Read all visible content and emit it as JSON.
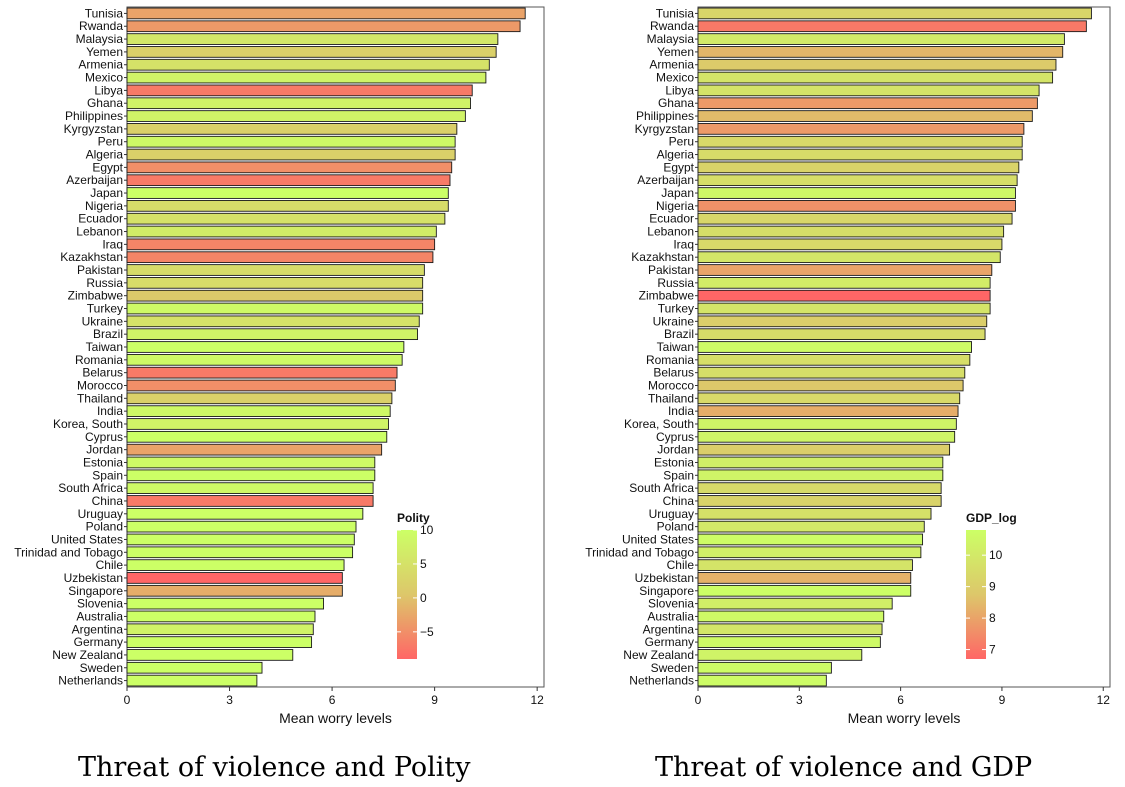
{
  "chart_data": [
    {
      "type": "bar",
      "orientation": "horizontal",
      "caption": "Threat of violence and Polity",
      "xlabel": "Mean worry levels",
      "xlim": [
        0,
        12.2
      ],
      "xticks": [
        0,
        3,
        6,
        9,
        12
      ],
      "categories": [
        "Tunisia",
        "Rwanda",
        "Malaysia",
        "Yemen",
        "Armenia",
        "Mexico",
        "Libya",
        "Ghana",
        "Philippines",
        "Kyrgyzstan",
        "Peru",
        "Algeria",
        "Egypt",
        "Azerbaijan",
        "Japan",
        "Nigeria",
        "Ecuador",
        "Lebanon",
        "Iraq",
        "Kazakhstan",
        "Pakistan",
        "Russia",
        "Zimbabwe",
        "Turkey",
        "Ukraine",
        "Brazil",
        "Taiwan",
        "Romania",
        "Belarus",
        "Morocco",
        "Thailand",
        "India",
        "Korea, South",
        "Cyprus",
        "Jordan",
        "Estonia",
        "Spain",
        "South Africa",
        "China",
        "Uruguay",
        "Poland",
        "United States",
        "Trinidad and Tobago",
        "Chile",
        "Uzbekistan",
        "Singapore",
        "Slovenia",
        "Australia",
        "Argentina",
        "Germany",
        "New Zealand",
        "Sweden",
        "Netherlands"
      ],
      "values": [
        11.65,
        11.5,
        10.85,
        10.8,
        10.6,
        10.5,
        10.1,
        10.05,
        9.9,
        9.65,
        9.6,
        9.6,
        9.5,
        9.45,
        9.4,
        9.4,
        9.3,
        9.05,
        9.0,
        8.95,
        8.7,
        8.65,
        8.65,
        8.65,
        8.55,
        8.5,
        8.1,
        8.05,
        7.9,
        7.85,
        7.75,
        7.7,
        7.65,
        7.6,
        7.45,
        7.25,
        7.25,
        7.2,
        7.2,
        6.9,
        6.7,
        6.65,
        6.6,
        6.35,
        6.3,
        6.3,
        5.75,
        5.5,
        5.45,
        5.4,
        4.85,
        3.95,
        3.8
      ],
      "fill_variable": "Polity",
      "fill_values": [
        -3,
        -4,
        6,
        2,
        5,
        8,
        -7,
        8,
        8,
        2,
        9,
        2,
        -5,
        -7,
        10,
        4,
        5,
        7,
        -6,
        -6,
        4,
        4,
        1,
        9,
        5,
        8,
        10,
        9,
        -7,
        -5,
        2,
        9,
        8,
        10,
        -3,
        9,
        10,
        9,
        -7,
        10,
        10,
        10,
        10,
        10,
        -9,
        -2,
        10,
        10,
        8,
        10,
        10,
        10,
        10
      ],
      "legend": {
        "title": "Polity",
        "ticks": [
          10,
          5,
          0,
          -5
        ],
        "range": [
          -9,
          10
        ],
        "position": "right"
      },
      "color_scale": {
        "low": "#ff6666",
        "mid": "#ddc76a",
        "high": "#ccff66"
      }
    },
    {
      "type": "bar",
      "orientation": "horizontal",
      "caption": "Threat of violence and GDP",
      "xlabel": "Mean worry levels",
      "xlim": [
        0,
        12.2
      ],
      "xticks": [
        0,
        3,
        6,
        9,
        12
      ],
      "categories": [
        "Tunisia",
        "Rwanda",
        "Malaysia",
        "Yemen",
        "Armenia",
        "Mexico",
        "Libya",
        "Ghana",
        "Philippines",
        "Kyrgyzstan",
        "Peru",
        "Algeria",
        "Egypt",
        "Azerbaijan",
        "Japan",
        "Nigeria",
        "Ecuador",
        "Lebanon",
        "Iraq",
        "Kazakhstan",
        "Pakistan",
        "Russia",
        "Zimbabwe",
        "Turkey",
        "Ukraine",
        "Brazil",
        "Taiwan",
        "Romania",
        "Belarus",
        "Morocco",
        "Thailand",
        "India",
        "Korea, South",
        "Cyprus",
        "Jordan",
        "Estonia",
        "Spain",
        "South Africa",
        "China",
        "Uruguay",
        "Poland",
        "United States",
        "Trinidad and Tobago",
        "Chile",
        "Uzbekistan",
        "Singapore",
        "Slovenia",
        "Australia",
        "Argentina",
        "Germany",
        "New Zealand",
        "Sweden",
        "Netherlands"
      ],
      "values": [
        11.65,
        11.5,
        10.85,
        10.8,
        10.6,
        10.5,
        10.1,
        10.05,
        9.9,
        9.65,
        9.6,
        9.6,
        9.5,
        9.45,
        9.4,
        9.4,
        9.3,
        9.05,
        9.0,
        8.95,
        8.7,
        8.65,
        8.65,
        8.65,
        8.55,
        8.5,
        8.1,
        8.05,
        7.9,
        7.85,
        7.75,
        7.7,
        7.65,
        7.6,
        7.45,
        7.25,
        7.25,
        7.2,
        7.2,
        6.9,
        6.7,
        6.65,
        6.6,
        6.35,
        6.3,
        6.3,
        5.75,
        5.5,
        5.45,
        5.4,
        4.85,
        3.95,
        3.8
      ],
      "fill_variable": "GDP_log",
      "fill_values": [
        9.3,
        7.1,
        10.0,
        8.4,
        8.9,
        9.8,
        9.8,
        7.8,
        8.5,
        7.8,
        9.4,
        9.5,
        9.2,
        9.6,
        10.5,
        7.6,
        9.3,
        9.6,
        9.4,
        9.9,
        8.0,
        10.1,
        6.7,
        9.8,
        9.0,
        9.5,
        10.6,
        9.6,
        9.6,
        8.8,
        9.4,
        8.2,
        10.4,
        10.4,
        9.0,
        10.2,
        10.4,
        9.5,
        9.2,
        9.7,
        10.0,
        10.7,
        10.2,
        9.8,
        8.3,
        10.8,
        10.2,
        10.6,
        9.9,
        10.6,
        10.4,
        10.7,
        10.7
      ],
      "legend": {
        "title": "GDP_log",
        "ticks": [
          10,
          9,
          8,
          7
        ],
        "range": [
          6.7,
          10.8
        ],
        "position": "right"
      },
      "color_scale": {
        "low": "#ff6666",
        "mid": "#ddc76a",
        "high": "#ccff66"
      }
    }
  ]
}
